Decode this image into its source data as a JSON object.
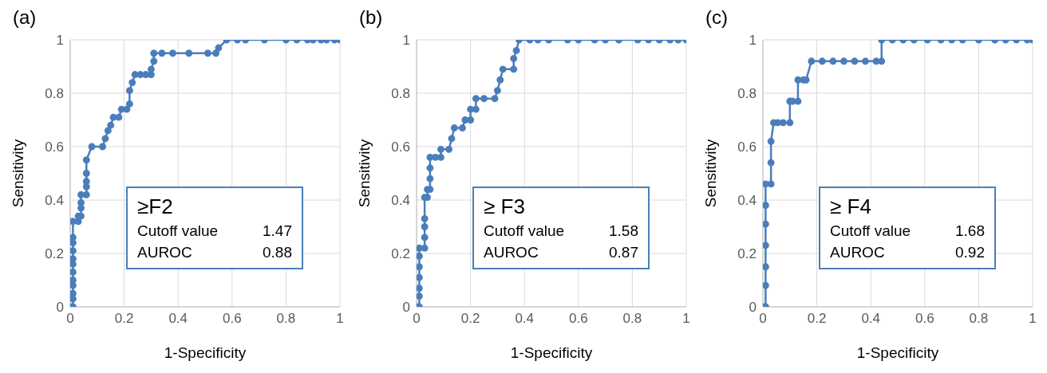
{
  "chart_data": [
    {
      "type": "line",
      "title": "(a)",
      "xlabel": "1-Specificity",
      "ylabel": "Sensitivity",
      "xlim": [
        0,
        1
      ],
      "ylim": [
        0,
        1
      ],
      "xticks": [
        0,
        0.2,
        0.4,
        0.6,
        0.8,
        1
      ],
      "yticks": [
        0,
        0.2,
        0.4,
        0.6,
        0.8,
        1
      ],
      "grid": true,
      "marker": "circle",
      "annotations": [
        "≥F2",
        "Cutoff value 1.47",
        "AUROC 0.88"
      ],
      "series": [
        {
          "color": "#4a7ebb",
          "x": [
            0,
            0.01,
            0.01,
            0.01,
            0.01,
            0.01,
            0.01,
            0.01,
            0.01,
            0.01,
            0.01,
            0.01,
            0.01,
            0.03,
            0.03,
            0.04,
            0.04,
            0.04,
            0.04,
            0.06,
            0.06,
            0.06,
            0.06,
            0.06,
            0.08,
            0.12,
            0.13,
            0.14,
            0.15,
            0.16,
            0.18,
            0.19,
            0.21,
            0.22,
            0.22,
            0.23,
            0.24,
            0.26,
            0.28,
            0.3,
            0.3,
            0.31,
            0.31,
            0.34,
            0.38,
            0.44,
            0.51,
            0.54,
            0.55,
            0.58,
            0.62,
            0.65,
            0.72,
            0.8,
            0.84,
            0.88,
            0.9,
            0.93,
            0.95,
            0.98,
            1
          ],
          "values": [
            0,
            0,
            0.03,
            0.05,
            0.08,
            0.1,
            0.13,
            0.16,
            0.18,
            0.21,
            0.24,
            0.26,
            0.32,
            0.32,
            0.34,
            0.34,
            0.37,
            0.39,
            0.42,
            0.42,
            0.45,
            0.47,
            0.5,
            0.55,
            0.6,
            0.6,
            0.63,
            0.66,
            0.68,
            0.71,
            0.71,
            0.74,
            0.74,
            0.76,
            0.81,
            0.84,
            0.87,
            0.87,
            0.87,
            0.87,
            0.89,
            0.92,
            0.95,
            0.95,
            0.95,
            0.95,
            0.95,
            0.95,
            0.97,
            1,
            1,
            1,
            1,
            1,
            1,
            1,
            1,
            1,
            1,
            1,
            1
          ]
        }
      ]
    },
    {
      "type": "line",
      "title": "(b)",
      "xlabel": "1-Specificity",
      "ylabel": "Sensitivity",
      "xlim": [
        0,
        1
      ],
      "ylim": [
        0,
        1
      ],
      "xticks": [
        0,
        0.2,
        0.4,
        0.6,
        0.8,
        1
      ],
      "yticks": [
        0,
        0.2,
        0.4,
        0.6,
        0.8,
        1
      ],
      "grid": true,
      "marker": "circle",
      "annotations": [
        "≥ F3",
        "Cutoff value 1.58",
        "AUROC 0.87"
      ],
      "series": [
        {
          "color": "#4a7ebb",
          "x": [
            0,
            0.01,
            0.01,
            0.01,
            0.01,
            0.01,
            0.01,
            0.01,
            0.03,
            0.03,
            0.03,
            0.03,
            0.03,
            0.04,
            0.04,
            0.05,
            0.05,
            0.05,
            0.05,
            0.07,
            0.09,
            0.09,
            0.12,
            0.13,
            0.14,
            0.17,
            0.18,
            0.2,
            0.2,
            0.22,
            0.22,
            0.25,
            0.29,
            0.3,
            0.31,
            0.32,
            0.36,
            0.36,
            0.37,
            0.38,
            0.42,
            0.45,
            0.49,
            0.56,
            0.6,
            0.66,
            0.7,
            0.75,
            0.82,
            0.86,
            0.9,
            0.94,
            0.97,
            1
          ],
          "values": [
            0,
            0,
            0.04,
            0.07,
            0.11,
            0.15,
            0.19,
            0.22,
            0.22,
            0.26,
            0.3,
            0.33,
            0.41,
            0.41,
            0.44,
            0.44,
            0.48,
            0.52,
            0.56,
            0.56,
            0.56,
            0.59,
            0.59,
            0.63,
            0.67,
            0.67,
            0.7,
            0.7,
            0.74,
            0.74,
            0.78,
            0.78,
            0.78,
            0.81,
            0.85,
            0.89,
            0.89,
            0.93,
            0.96,
            1,
            1,
            1,
            1,
            1,
            1,
            1,
            1,
            1,
            1,
            1,
            1,
            1,
            1,
            1
          ]
        }
      ]
    },
    {
      "type": "line",
      "title": "(c)",
      "xlabel": "1-Specificity",
      "ylabel": "Sensitivity",
      "xlim": [
        0,
        1
      ],
      "ylim": [
        0,
        1
      ],
      "xticks": [
        0,
        0.2,
        0.4,
        0.6,
        0.8,
        1
      ],
      "yticks": [
        0,
        0.2,
        0.4,
        0.6,
        0.8,
        1
      ],
      "grid": true,
      "marker": "circle",
      "annotations": [
        "≥ F4",
        "Cutoff value 1.68",
        "AUROC 0.92"
      ],
      "series": [
        {
          "color": "#4a7ebb",
          "x": [
            0,
            0.01,
            0.01,
            0.01,
            0.01,
            0.01,
            0.01,
            0.01,
            0.03,
            0.03,
            0.03,
            0.04,
            0.055,
            0.075,
            0.1,
            0.1,
            0.11,
            0.13,
            0.13,
            0.15,
            0.16,
            0.18,
            0.22,
            0.26,
            0.3,
            0.34,
            0.38,
            0.42,
            0.44,
            0.44,
            0.48,
            0.52,
            0.56,
            0.61,
            0.66,
            0.7,
            0.74,
            0.8,
            0.86,
            0.9,
            0.94,
            0.98,
            1
          ],
          "values": [
            0,
            0,
            0.08,
            0.15,
            0.23,
            0.31,
            0.38,
            0.46,
            0.46,
            0.54,
            0.62,
            0.69,
            0.69,
            0.69,
            0.69,
            0.77,
            0.77,
            0.77,
            0.85,
            0.85,
            0.85,
            0.92,
            0.92,
            0.92,
            0.92,
            0.92,
            0.92,
            0.92,
            0.92,
            1,
            1,
            1,
            1,
            1,
            1,
            1,
            1,
            1,
            1,
            1,
            1,
            1,
            1
          ]
        }
      ]
    }
  ]
}
